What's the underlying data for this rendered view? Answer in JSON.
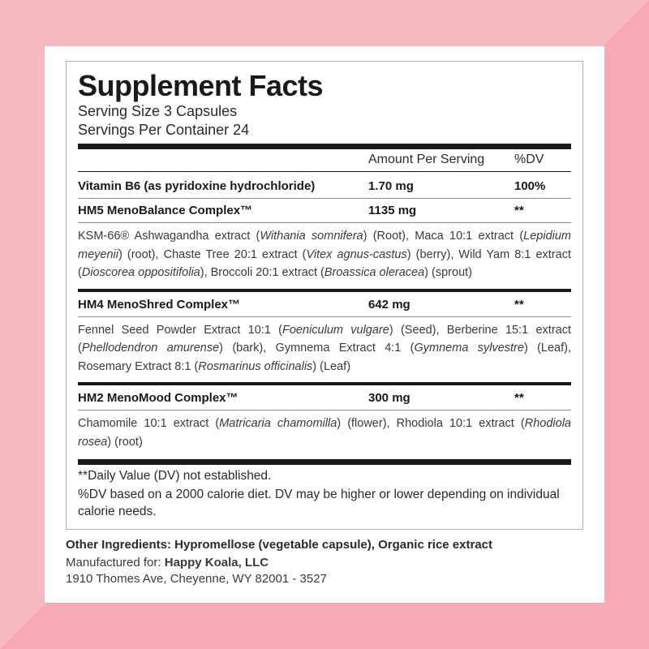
{
  "colors": {
    "bg1": "#f8b8c0",
    "bg2": "#f5aab4",
    "panel": "#ffffff",
    "rule": "#1a1a1a"
  },
  "title": "Supplement Facts",
  "serving_size": "Serving Size 3 Capsules",
  "servings_per": "Servings Per Container 24",
  "headers": {
    "amount": "Amount Per Serving",
    "dv": "%DV"
  },
  "rows": [
    {
      "name": "Vitamin B6 (as pyridoxine hydrochloride)",
      "amount": "1.70 mg",
      "dv": "100%"
    },
    {
      "name": "HM5 MenoBalance Complex™",
      "amount": "1135 mg",
      "dv": "**",
      "desc": "KSM-66® Ashwagandha extract (<i>Withania somnifera</i>) (Root), Maca 10:1 extract (<i>Lepidium meyenii</i>) (root), Chaste Tree 20:1 extract (<i>Vitex agnus-castus</i>) (berry), Wild Yam 8:1 extract (<i>Dioscorea oppositifolia</i>), Broccoli 20:1 extract (<i>Broassica oleracea</i>) (sprout)"
    },
    {
      "name": "HM4 MenoShred Complex™",
      "amount": "642 mg",
      "dv": "**",
      "desc": "Fennel Seed Powder Extract 10:1 (<i>Foeniculum vulgare</i>) (Seed), Berberine 15:1 extract (<i>Phellodendron amurense</i>) (bark), Gymnema Extract 4:1 (<i>Gymnema sylvestre</i>) (Leaf), Rosemary Extract 8:1 (<i>Rosmarinus officinalis</i>) (Leaf)"
    },
    {
      "name": "HM2 MenoMood Complex™",
      "amount": "300 mg",
      "dv": "**",
      "desc": "Chamomile 10:1 extract (<i>Matricaria chamomilla</i>) (flower), Rhodiola 10:1 extract (<i>Rhodiola rosea</i>) (root)"
    }
  ],
  "foot1": "**Daily Value (DV) not established.",
  "foot2": "%DV based on a 2000 calorie diet. DV may be higher or lower depending on individual calorie needs.",
  "other": "Other Ingredients: Hypromellose (vegetable capsule), Organic rice extract",
  "mfg_label": "Manufactured for: ",
  "mfg_company": "Happy Koala, LLC",
  "mfg_addr": "1910 Thomes Ave, Cheyenne, WY 82001 - 3527"
}
